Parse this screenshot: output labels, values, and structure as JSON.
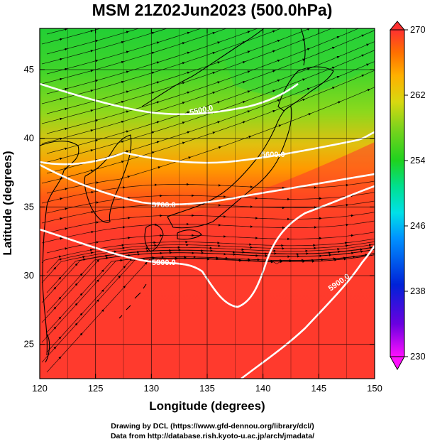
{
  "title": "MSM 21Z02Jun2023 (500.0hPa)",
  "chart_data": {
    "type": "map",
    "title": "MSM 21Z02Jun2023 (500.0hPa)",
    "xlabel": "Longitude (degrees)",
    "ylabel": "Latitude  (degrees)",
    "xlim": [
      120,
      150
    ],
    "ylim": [
      22.5,
      48
    ],
    "xticks": [
      "120",
      "125",
      "130",
      "135",
      "140",
      "145",
      "150"
    ],
    "yticks": [
      "25",
      "30",
      "35",
      "40",
      "45"
    ],
    "grid": true,
    "colorbar": {
      "min": 230,
      "max": 270,
      "ticks": [
        "270",
        "262",
        "254",
        "246",
        "238",
        "230"
      ],
      "position": "right",
      "colors": [
        "#ff10ff",
        "#6a00e0",
        "#0022d8",
        "#0090ff",
        "#00e0e8",
        "#00e090",
        "#1fd21f",
        "#7ed31c",
        "#d8d810",
        "#ffb000",
        "#ff7000",
        "#ff3a20",
        "#ff3030"
      ]
    },
    "contours": [
      {
        "label": "5500.0"
      },
      {
        "label": "5600.0"
      },
      {
        "label": "5700.0"
      },
      {
        "label": "5800.0"
      },
      {
        "label": "5900.0"
      }
    ]
  },
  "credits": {
    "line1": "Drawing by DCL (https://www.gfd-dennou.org/library/dcl/)",
    "line2": "Data from http://database.rish.kyoto-u.ac.jp/arch/jmadata/"
  }
}
